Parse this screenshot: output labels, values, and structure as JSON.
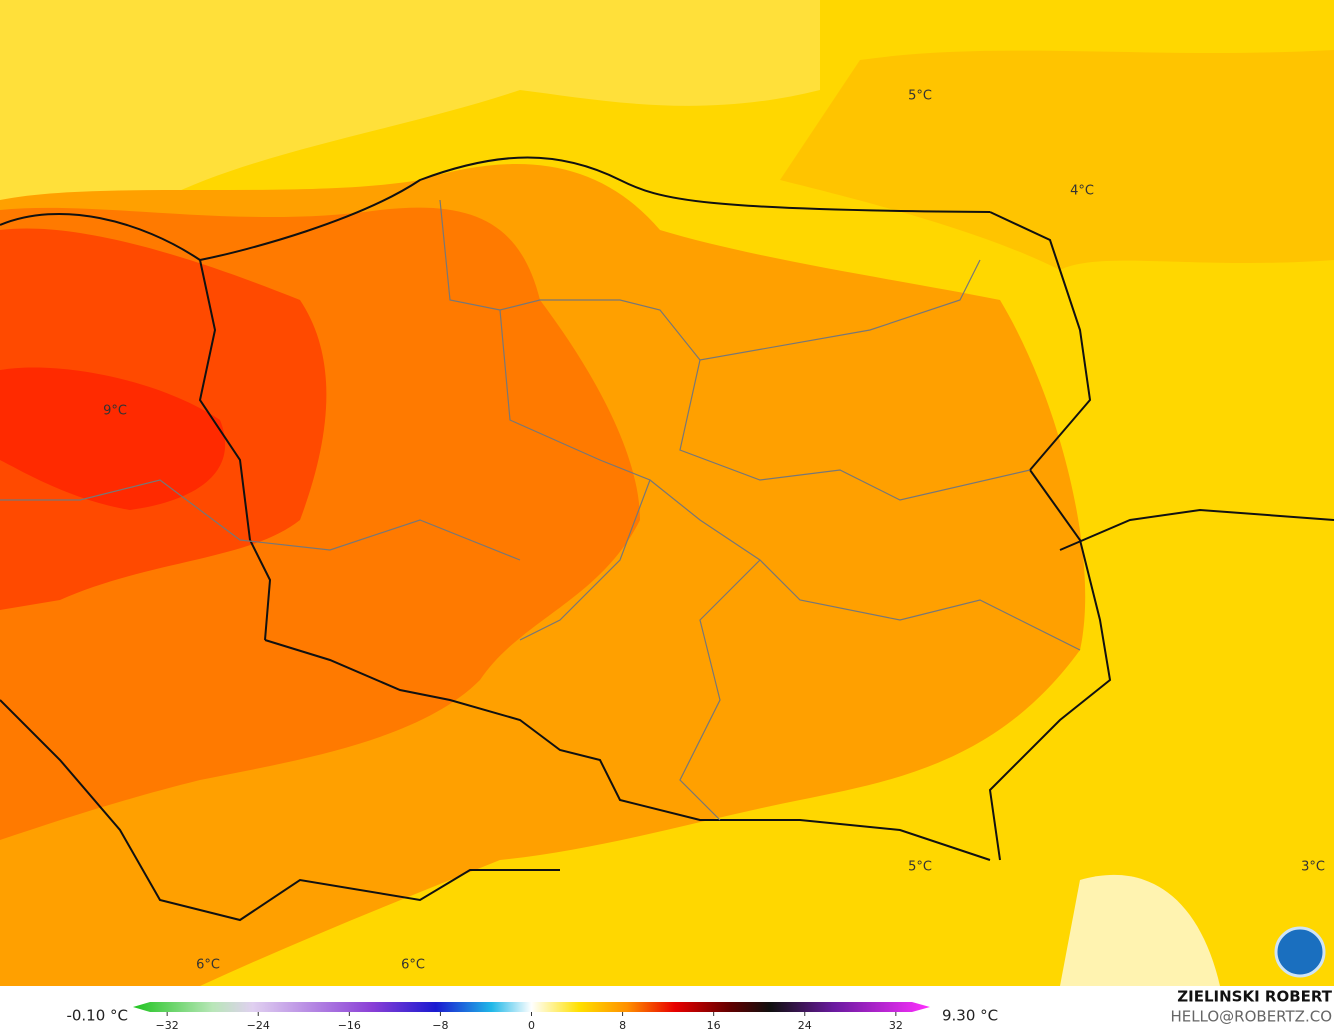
{
  "map": {
    "labels": [
      {
        "text": "5°C"
      },
      {
        "text": "4°C"
      },
      {
        "text": "9°C"
      },
      {
        "text": "5°C"
      },
      {
        "text": "3°C"
      },
      {
        "text": "6°C"
      },
      {
        "text": "6°C"
      }
    ]
  },
  "colorbar": {
    "min_label": "-0.10 °C",
    "max_label": "9.30 °C",
    "range": [
      -35,
      35
    ],
    "ticks": [
      {
        "value": -32,
        "label": "−32"
      },
      {
        "value": -24,
        "label": "−24"
      },
      {
        "value": -16,
        "label": "−16"
      },
      {
        "value": -8,
        "label": "−8"
      },
      0,
      8,
      16,
      24,
      32
    ]
  },
  "credits": {
    "name": "ZIELINSKI ROBERT",
    "email": "HELLO@ROBERTZ.CO"
  }
}
